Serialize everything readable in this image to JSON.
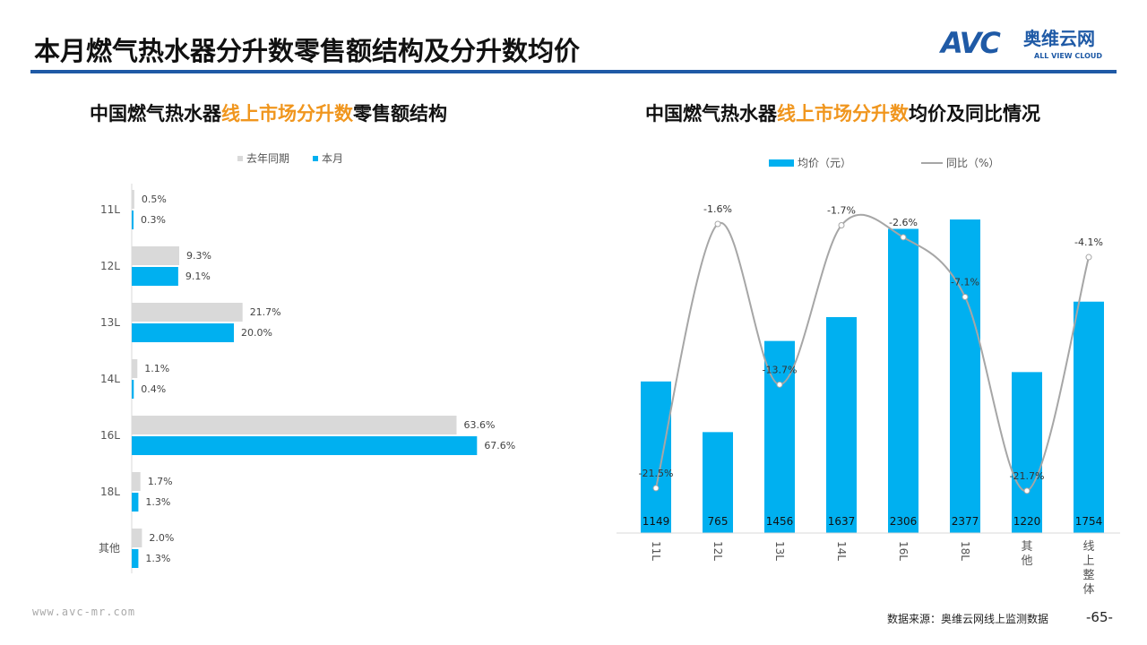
{
  "header": {
    "title": "本月燃气热水器分升数零售额结构及分升数均价",
    "logo_mark": "AVC",
    "logo_cn": "奥维云网",
    "logo_en": "ALL VIEW CLOUD"
  },
  "footer": {
    "website": "www.avc-mr.com",
    "source": "数据来源：奥维云网线上监测数据",
    "page": "-65-"
  },
  "chart_data": [
    {
      "type": "bar",
      "orientation": "horizontal",
      "title_parts": [
        "中国燃气热水器",
        "线上市场分升数",
        "零售额结构"
      ],
      "categories": [
        "11L",
        "12L",
        "13L",
        "14L",
        "16L",
        "18L",
        "其他"
      ],
      "series": [
        {
          "name": "去年同期",
          "color": "#d9d9d9",
          "values": [
            0.5,
            9.3,
            21.7,
            1.1,
            63.6,
            1.7,
            2.0
          ]
        },
        {
          "name": "本月",
          "color": "#00b0f0",
          "values": [
            0.3,
            9.1,
            20.0,
            0.4,
            67.6,
            1.3,
            1.3
          ]
        }
      ],
      "unit": "%",
      "legend": "top"
    },
    {
      "type": "bar+line",
      "title_parts": [
        "中国燃气热水器",
        "线上市场分升数",
        "均价及同比情况"
      ],
      "categories": [
        "11L",
        "12L",
        "13L",
        "14L",
        "16L",
        "18L",
        "其他",
        "线上整体"
      ],
      "series": [
        {
          "name": "均价（元）",
          "type": "bar",
          "color": "#00b0f0",
          "values": [
            1149,
            765,
            1456,
            1637,
            2306,
            2377,
            1220,
            1754
          ]
        },
        {
          "name": "同比（%）",
          "type": "line",
          "color": "#a6a6a6",
          "values": [
            -21.5,
            -1.6,
            -13.7,
            -1.7,
            -2.6,
            -7.1,
            -21.7,
            -4.1
          ]
        }
      ],
      "legend": "top"
    }
  ]
}
